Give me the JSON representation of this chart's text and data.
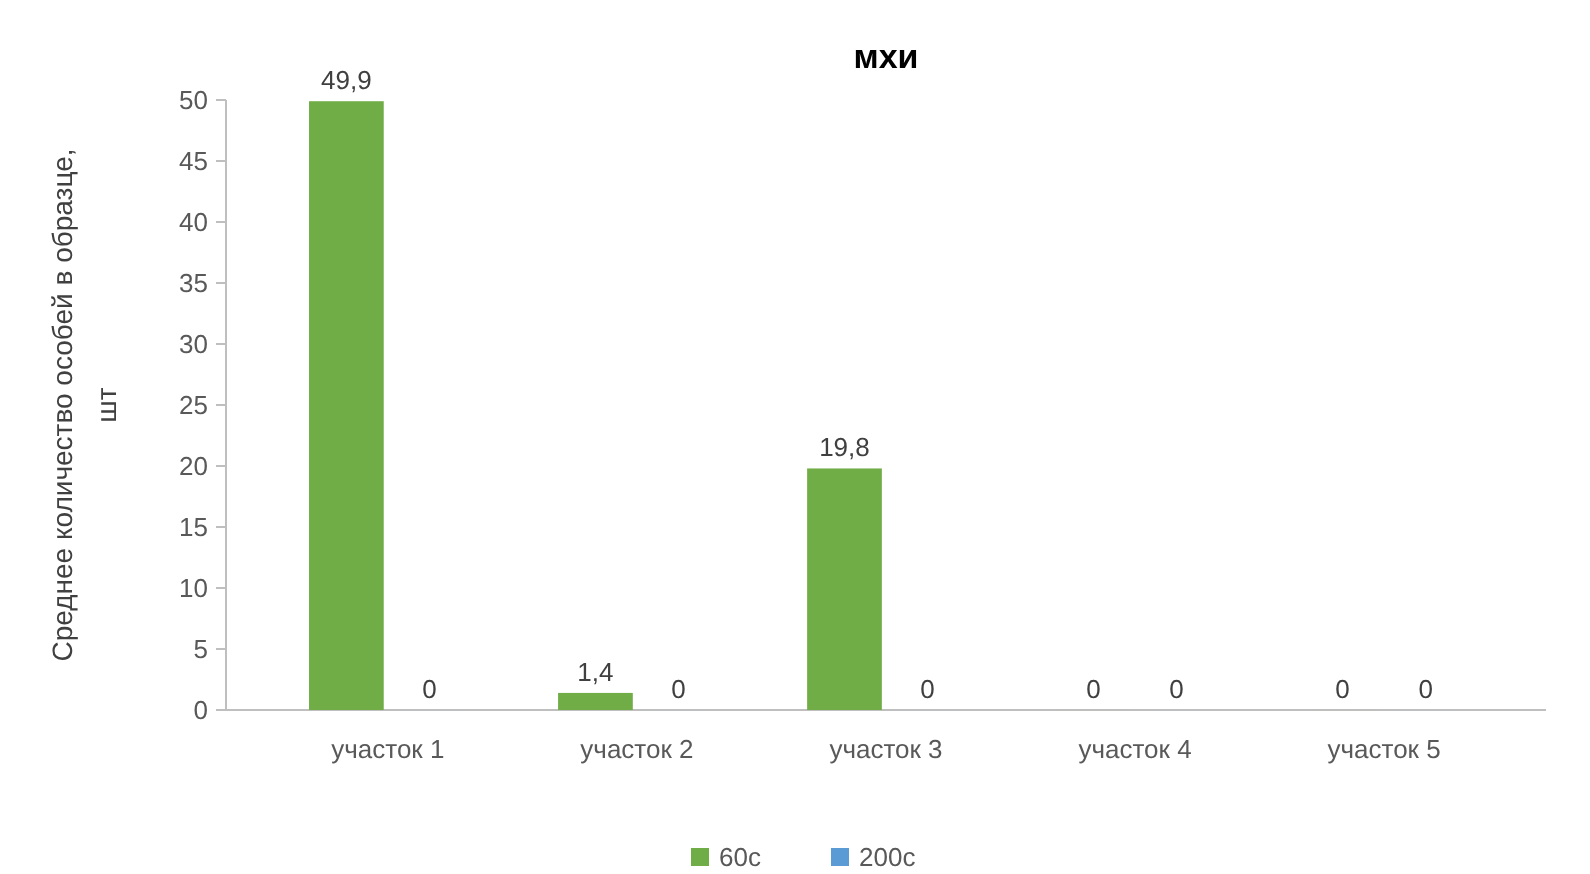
{
  "chart_data": {
    "type": "bar",
    "title": "мхи",
    "ylabel": "Среднее количество особей в образце, шт",
    "categories": [
      "участок 1",
      "участок 2",
      "участок 3",
      "участок 4",
      "участок 5"
    ],
    "series": [
      {
        "name": "60с",
        "color": "#70ad47",
        "values": [
          49.9,
          1.4,
          19.8,
          0,
          0
        ],
        "value_labels": [
          "49,9",
          "1,4",
          "19,8",
          "0",
          "0"
        ]
      },
      {
        "name": "200с",
        "color": "#5b9bd5",
        "values": [
          0,
          0,
          0,
          0,
          0
        ],
        "value_labels": [
          "0",
          "0",
          "0",
          "0",
          "0"
        ]
      }
    ],
    "ylim": [
      0,
      50
    ],
    "yticks": [
      0,
      5,
      10,
      15,
      20,
      25,
      30,
      35,
      40,
      45,
      50
    ],
    "grid": false,
    "legend": "bottom"
  }
}
